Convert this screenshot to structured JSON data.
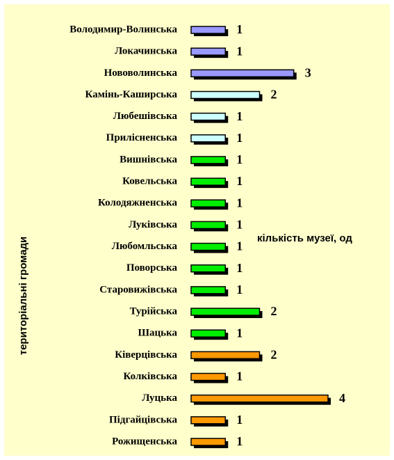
{
  "chart_data": {
    "type": "barh",
    "categories": [
      "Володимир-Волинська",
      "Локачинська",
      "Нововолинська",
      "Камінь-Каширська",
      "Любешівська",
      "Прилісненська",
      "Вишнівська",
      "Ковельська",
      "Колодяжненська",
      "Луківська",
      "Любомльська",
      "Поворська",
      "Старовижівська",
      "Турійська",
      "Шацька",
      "Ківерцівська",
      "Колківська",
      "Луцька",
      "Підгайцівська",
      "Рожищенська"
    ],
    "values": [
      1,
      1,
      3,
      2,
      1,
      1,
      1,
      1,
      1,
      1,
      1,
      1,
      1,
      2,
      1,
      2,
      1,
      4,
      1,
      1
    ],
    "colors": [
      "#9999ff",
      "#9999ff",
      "#9999ff",
      "#ccffff",
      "#ccffff",
      "#ccffff",
      "#00ee00",
      "#00ee00",
      "#00ee00",
      "#00ee00",
      "#00ee00",
      "#00ee00",
      "#00ee00",
      "#00ee00",
      "#00ee00",
      "#ff9900",
      "#ff9900",
      "#ff9900",
      "#ff9900",
      "#ff9900"
    ],
    "xlim": [
      0,
      4
    ],
    "y_label": "територіальні громади",
    "annotation": "кількість музеї, од"
  }
}
